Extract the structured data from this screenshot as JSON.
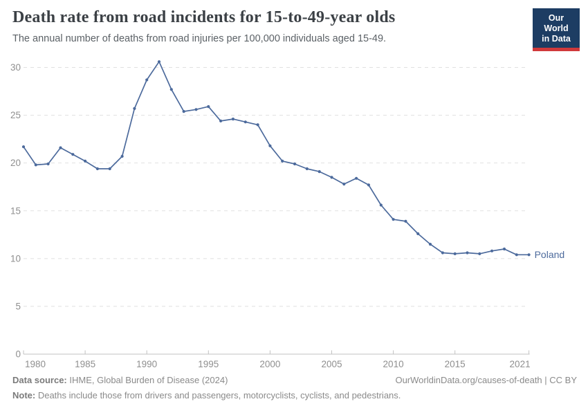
{
  "header": {
    "title": "Death rate from road incidents for 15-to-49-year olds",
    "subtitle": "The annual number of deaths from road injuries per 100,000 individuals aged 15-49."
  },
  "logo": {
    "line1": "Our World",
    "line2": "in Data",
    "bg_color": "#1d3d63",
    "bar_color": "#d0393b"
  },
  "chart_data": {
    "type": "line",
    "title": "Death rate from road incidents for 15-to-49-year olds",
    "xlabel": "",
    "ylabel": "",
    "x": [
      1980,
      1981,
      1982,
      1983,
      1984,
      1985,
      1986,
      1987,
      1988,
      1989,
      1990,
      1991,
      1992,
      1993,
      1994,
      1995,
      1996,
      1997,
      1998,
      1999,
      2000,
      2001,
      2002,
      2003,
      2004,
      2005,
      2006,
      2007,
      2008,
      2009,
      2010,
      2011,
      2012,
      2013,
      2014,
      2015,
      2016,
      2017,
      2018,
      2019,
      2020,
      2021
    ],
    "series": [
      {
        "name": "Poland",
        "color": "#4c6a9c",
        "values": [
          21.7,
          19.8,
          19.9,
          21.6,
          20.9,
          20.2,
          19.4,
          19.4,
          20.7,
          25.7,
          28.7,
          30.6,
          27.7,
          25.4,
          25.6,
          25.9,
          24.4,
          24.6,
          24.3,
          24.0,
          21.8,
          20.2,
          19.9,
          19.4,
          19.1,
          18.5,
          17.8,
          18.4,
          17.7,
          15.6,
          14.1,
          13.9,
          12.6,
          11.5,
          10.6,
          10.5,
          10.6,
          10.5,
          10.8,
          11.0,
          10.4,
          10.4
        ]
      }
    ],
    "end_label": "Poland",
    "ylim": [
      0,
      30
    ],
    "yticks": [
      0,
      5,
      10,
      15,
      20,
      25,
      30
    ],
    "xticks": [
      1980,
      1985,
      1990,
      1995,
      2000,
      2005,
      2010,
      2015,
      2021
    ],
    "grid": "horizontal dashed",
    "legend_position": "end-of-line",
    "colors": {
      "gridline": "#e0e0e0",
      "axis": "#c2c2c2",
      "tick_label": "#8f8f8f"
    }
  },
  "footer": {
    "source_label": "Data source:",
    "source_text": " IHME, Global Burden of Disease (2024)",
    "right_text": "OurWorldinData.org/causes-of-death | CC BY",
    "note_label": "Note:",
    "note_text": " Deaths include those from drivers and passengers, motorcyclists, cyclists, and pedestrians."
  }
}
